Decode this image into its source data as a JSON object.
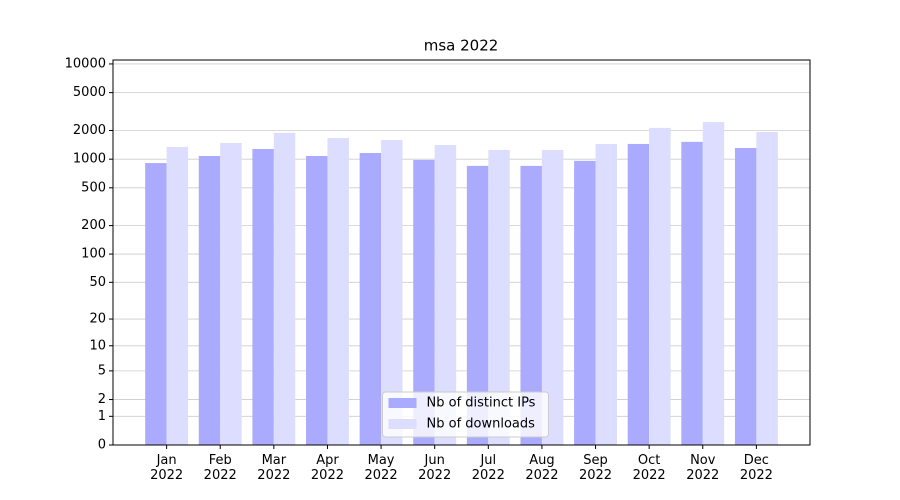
{
  "chart_data": {
    "type": "bar",
    "title": "msa 2022",
    "categories": [
      "Jan\n2022",
      "Feb\n2022",
      "Mar\n2022",
      "Apr\n2022",
      "May\n2022",
      "Jun\n2022",
      "Jul\n2022",
      "Aug\n2022",
      "Sep\n2022",
      "Oct\n2022",
      "Nov\n2022",
      "Dec\n2022"
    ],
    "series": [
      {
        "name": "Nb of distinct IPs",
        "color": "#aaaaff",
        "values": [
          910,
          1080,
          1280,
          1080,
          1160,
          980,
          850,
          850,
          960,
          1445,
          1520,
          1310
        ]
      },
      {
        "name": "Nb of downloads",
        "color": "#ddddff",
        "values": [
          1345,
          1480,
          1890,
          1670,
          1590,
          1410,
          1250,
          1250,
          1445,
          2130,
          2460,
          1930
        ]
      }
    ],
    "yscale": "log1p",
    "ylim": [
      0,
      11000
    ],
    "yticks": [
      0,
      1,
      2,
      5,
      10,
      20,
      50,
      100,
      200,
      500,
      1000,
      2000,
      5000,
      10000
    ],
    "grid": true,
    "legend": "lower center"
  }
}
